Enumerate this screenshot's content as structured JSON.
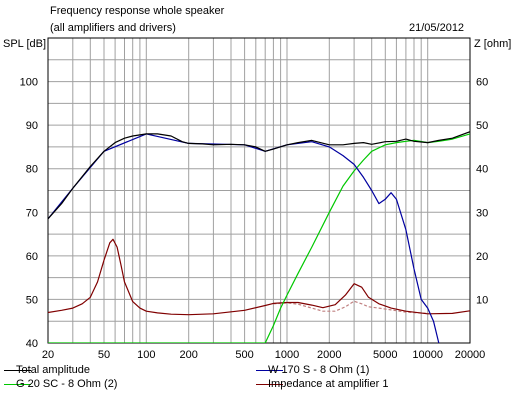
{
  "header": {
    "title": "Frequency response whole speaker",
    "subtitle": "(all amplifiers and drivers)",
    "date": "21/05/2012"
  },
  "chart_data": {
    "type": "line",
    "title": "Frequency response whole speaker",
    "subtitle": "(all amplifiers and drivers)",
    "x_scale": "log",
    "xlim": [
      20,
      20000
    ],
    "x_ticks": [
      20,
      50,
      100,
      200,
      500,
      1000,
      2000,
      5000,
      10000,
      20000
    ],
    "x_tick_labels": [
      "20",
      "50",
      "100",
      "200",
      "500",
      "1000",
      "2000",
      "5000",
      "10000",
      "20000"
    ],
    "ylabel_left": "SPL [dB]",
    "ylim_left": [
      40,
      110
    ],
    "y_ticks_left": [
      40,
      50,
      60,
      70,
      80,
      90,
      100
    ],
    "ylabel_right": "Z [ohm]",
    "ylim_right": [
      0,
      70
    ],
    "y_ticks_right": [
      10,
      20,
      30,
      40,
      50,
      60
    ],
    "grid": true,
    "series": [
      {
        "name": "Total amplitude",
        "axis": "left",
        "color": "#000000",
        "x": [
          20,
          25,
          30,
          40,
          50,
          60,
          70,
          80,
          100,
          120,
          150,
          180,
          200,
          250,
          300,
          400,
          500,
          600,
          700,
          800,
          1000,
          1200,
          1500,
          2000,
          2500,
          3000,
          3500,
          4000,
          5000,
          6000,
          7000,
          8000,
          10000,
          12000,
          15000,
          20000
        ],
        "y": [
          68.5,
          72,
          75.5,
          80.5,
          84,
          86,
          87,
          87.5,
          88,
          88,
          87.5,
          86.2,
          85.8,
          85.7,
          85.5,
          85.6,
          85.5,
          85,
          84,
          84.5,
          85.5,
          86,
          86.5,
          85.5,
          85.5,
          85.8,
          86,
          85.6,
          86.2,
          86.3,
          86.8,
          86.3,
          86,
          86.5,
          87,
          88.5
        ]
      },
      {
        "name": "W 170 S - 8 Ohm (1)",
        "axis": "left",
        "color": "#0000a0",
        "x": [
          20,
          30,
          50,
          100,
          200,
          500,
          700,
          1000,
          1500,
          2000,
          2500,
          3000,
          3500,
          4000,
          4500,
          5000,
          5500,
          6000,
          7000,
          8000,
          9000,
          10000,
          11000,
          12000,
          13000
        ],
        "y": [
          68.5,
          75.5,
          84,
          88,
          85.8,
          85.5,
          84,
          85.5,
          86.2,
          85,
          83,
          81,
          78,
          75,
          72,
          73,
          74.5,
          73,
          66,
          57,
          50,
          48,
          45,
          40,
          38
        ]
      },
      {
        "name": "G 20 SC - 8 Ohm (2)",
        "axis": "left",
        "color": "#00c800",
        "x": [
          20,
          100,
          500,
          700,
          800,
          900,
          1000,
          1200,
          1500,
          2000,
          2500,
          3000,
          3500,
          4000,
          5000,
          6000,
          7000,
          8000,
          10000,
          12000,
          15000,
          20000
        ],
        "y": [
          40,
          40,
          40,
          40,
          44,
          48,
          51,
          56,
          62,
          70,
          76,
          79.5,
          82,
          84,
          85.5,
          86,
          86.3,
          86.5,
          86,
          86.3,
          86.8,
          88
        ]
      },
      {
        "name": "Impedance at amplifier 1",
        "axis": "right",
        "color": "#800000",
        "x": [
          20,
          25,
          30,
          35,
          40,
          45,
          50,
          55,
          58,
          62,
          66,
          70,
          80,
          90,
          100,
          120,
          150,
          200,
          300,
          500,
          700,
          800,
          1000,
          1200,
          1500,
          1800,
          2200,
          2600,
          3000,
          3400,
          3800,
          4500,
          5500,
          7000,
          10000,
          15000,
          20000
        ],
        "y": [
          7,
          7.5,
          8,
          9,
          10.5,
          14,
          19,
          23,
          23.8,
          22,
          18,
          14,
          9.5,
          8,
          7.3,
          6.9,
          6.6,
          6.5,
          6.7,
          7.5,
          8.6,
          9.1,
          9.3,
          9.3,
          8.7,
          8.1,
          8.8,
          11,
          13.6,
          12.8,
          10.5,
          9,
          8,
          7.3,
          6.7,
          6.8,
          7.4
        ]
      },
      {
        "name": "",
        "axis": "right",
        "color": "#c08080",
        "style": "dashed",
        "x": [
          800,
          1000,
          1200,
          1500,
          1800,
          2200,
          2600,
          3000,
          3400,
          3800,
          4500,
          5500,
          7000,
          10000
        ],
        "y": [
          9.0,
          9.2,
          8.9,
          8.0,
          7.3,
          7.3,
          8.3,
          9.6,
          9.0,
          8.3,
          8.0,
          7.6,
          7.1,
          6.8
        ]
      }
    ],
    "legend": {
      "placement": "bottom",
      "entries": [
        {
          "label": "Total amplitude",
          "color": "#000000"
        },
        {
          "label": "W 170 S - 8 Ohm (1)",
          "color": "#0000a0"
        },
        {
          "label": "G 20 SC - 8 Ohm (2)",
          "color": "#00c800"
        },
        {
          "label": "Impedance at amplifier 1",
          "color": "#800000"
        }
      ]
    }
  }
}
